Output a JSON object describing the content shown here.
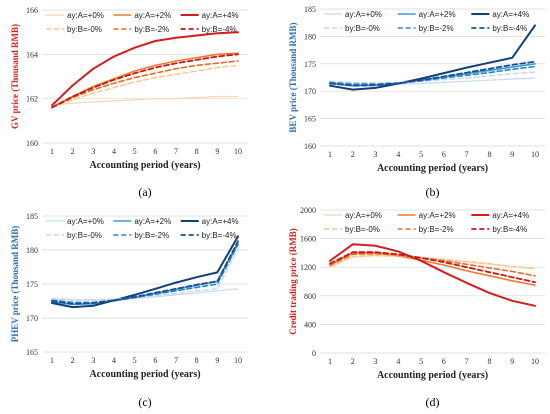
{
  "chart_data": [
    {
      "type": "line",
      "panel_label": "(a)",
      "xlabel": "Accounting period (years)",
      "ylabel": "GV price (Thousand RMB)",
      "ylabel_color": "#d42020",
      "ylim": [
        160,
        166
      ],
      "yticks": [
        160,
        162,
        164,
        166
      ],
      "x": [
        1,
        2,
        3,
        4,
        5,
        6,
        7,
        8,
        9,
        10
      ],
      "grid": true,
      "legend_position": "top",
      "series": [
        {
          "name": "ay:A=+0%",
          "color": "#fbd5b5",
          "dash": false,
          "width": 1.2,
          "values": [
            161.7,
            161.8,
            161.85,
            161.9,
            161.95,
            162.0,
            162.0,
            162.05,
            162.1,
            162.1
          ]
        },
        {
          "name": "ay:A=+2%",
          "color": "#f07c2a",
          "dash": false,
          "width": 1.6,
          "values": [
            161.6,
            162.1,
            162.55,
            162.9,
            163.25,
            163.5,
            163.7,
            163.85,
            164.0,
            164.05
          ]
        },
        {
          "name": "ay:A=+4%",
          "color": "#d21e1e",
          "dash": false,
          "width": 2.0,
          "values": [
            161.7,
            162.6,
            163.35,
            163.9,
            164.3,
            164.6,
            164.75,
            164.85,
            164.95,
            165.0
          ]
        },
        {
          "name": "by:B=-0%",
          "color": "#f7c68d",
          "dash": true,
          "width": 1.4,
          "values": [
            161.6,
            161.95,
            162.25,
            162.5,
            162.75,
            162.95,
            163.1,
            163.25,
            163.4,
            163.5
          ]
        },
        {
          "name": "by:B=-2%",
          "color": "#ea6a1c",
          "dash": true,
          "width": 1.6,
          "values": [
            161.6,
            162.05,
            162.4,
            162.7,
            162.95,
            163.15,
            163.35,
            163.5,
            163.6,
            163.7
          ]
        },
        {
          "name": "by:B=-4%",
          "color": "#c8161d",
          "dash": true,
          "width": 1.8,
          "values": [
            161.6,
            162.1,
            162.5,
            162.85,
            163.15,
            163.4,
            163.6,
            163.75,
            163.9,
            164.0
          ]
        }
      ]
    },
    {
      "type": "line",
      "panel_label": "(b)",
      "xlabel": "Accounting period (years)",
      "ylabel": "BEV price (Thousand RMB)",
      "ylabel_color": "#2e6db4",
      "ylim": [
        160,
        185
      ],
      "yticks": [
        160,
        165,
        170,
        175,
        180,
        185
      ],
      "x": [
        1,
        2,
        3,
        4,
        5,
        6,
        7,
        8,
        9,
        10
      ],
      "grid": true,
      "legend_position": "top",
      "series": [
        {
          "name": "ay:A=+0%",
          "color": "#c6d9f0",
          "dash": false,
          "width": 1.2,
          "values": [
            171.3,
            171.2,
            171.2,
            171.3,
            171.4,
            171.6,
            171.8,
            172.0,
            172.2,
            172.4
          ]
        },
        {
          "name": "ay:A=+2%",
          "color": "#3a9ad9",
          "dash": false,
          "width": 1.6,
          "values": [
            171.5,
            171.0,
            171.1,
            171.5,
            172.0,
            172.6,
            173.2,
            173.8,
            174.4,
            175.0
          ]
        },
        {
          "name": "ay:A=+4%",
          "color": "#123f7a",
          "dash": false,
          "width": 2.0,
          "values": [
            171.0,
            170.3,
            170.6,
            171.4,
            172.3,
            173.3,
            174.3,
            175.2,
            176.1,
            182.0
          ]
        },
        {
          "name": "by:B=-0%",
          "color": "#c6d9f0",
          "dash": true,
          "width": 1.4,
          "values": [
            171.8,
            171.6,
            171.5,
            171.6,
            171.8,
            172.1,
            172.4,
            172.8,
            173.2,
            173.5
          ]
        },
        {
          "name": "by:B=-2%",
          "color": "#2a86c8",
          "dash": true,
          "width": 1.6,
          "values": [
            171.6,
            171.3,
            171.3,
            171.5,
            171.9,
            172.4,
            172.9,
            173.4,
            174.0,
            174.5
          ]
        },
        {
          "name": "by:B=-4%",
          "color": "#1b4f8f",
          "dash": true,
          "width": 1.8,
          "values": [
            171.4,
            171.0,
            171.1,
            171.4,
            172.0,
            172.7,
            173.4,
            174.1,
            174.8,
            175.4
          ]
        }
      ]
    },
    {
      "type": "line",
      "panel_label": "(c)",
      "xlabel": "Accounting period (years)",
      "ylabel": "PHEV price (Thousand RMB)",
      "ylabel_color": "#2e6db4",
      "ylim": [
        165,
        185
      ],
      "yticks": [
        165,
        170,
        175,
        180,
        185
      ],
      "x": [
        1,
        2,
        3,
        4,
        5,
        6,
        7,
        8,
        9,
        10
      ],
      "grid": true,
      "legend_position": "top",
      "series": [
        {
          "name": "ay:A=+0%",
          "color": "#c6d9f0",
          "dash": false,
          "width": 1.2,
          "values": [
            172.8,
            172.6,
            172.6,
            172.7,
            172.9,
            173.1,
            173.4,
            173.7,
            174.0,
            174.3
          ]
        },
        {
          "name": "ay:A=+2%",
          "color": "#3a9ad9",
          "dash": false,
          "width": 1.6,
          "values": [
            172.4,
            172.0,
            172.1,
            172.5,
            173.0,
            173.6,
            174.2,
            174.8,
            175.4,
            181.0
          ]
        },
        {
          "name": "ay:A=+4%",
          "color": "#123f7a",
          "dash": false,
          "width": 2.0,
          "values": [
            172.2,
            171.6,
            171.8,
            172.6,
            173.4,
            174.3,
            175.2,
            176.0,
            176.7,
            182.0
          ]
        },
        {
          "name": "by:B=-0%",
          "color": "#c6d9f0",
          "dash": true,
          "width": 1.4,
          "values": [
            172.9,
            172.7,
            172.7,
            172.8,
            173.0,
            173.3,
            173.6,
            174.0,
            174.3,
            180.2
          ]
        },
        {
          "name": "by:B=-2%",
          "color": "#2a86c8",
          "dash": true,
          "width": 1.6,
          "values": [
            172.6,
            172.3,
            172.3,
            172.6,
            173.0,
            173.5,
            174.0,
            174.5,
            175.0,
            180.8
          ]
        },
        {
          "name": "by:B=-4%",
          "color": "#1b4f8f",
          "dash": true,
          "width": 1.8,
          "values": [
            172.5,
            172.1,
            172.2,
            172.6,
            173.1,
            173.7,
            174.3,
            174.9,
            175.4,
            181.3
          ]
        }
      ]
    },
    {
      "type": "line",
      "panel_label": "(d)",
      "xlabel": "Accounting period (years)",
      "ylabel": "Credit trading price (RMB)",
      "ylabel_color": "#d42020",
      "ylim": [
        0,
        2000
      ],
      "yticks": [
        0,
        400,
        800,
        1200,
        1600,
        2000
      ],
      "x": [
        1,
        2,
        3,
        4,
        5,
        6,
        7,
        8,
        9,
        10
      ],
      "grid": true,
      "legend_position": "top",
      "series": [
        {
          "name": "ay:A=+0%",
          "color": "#fbd5b5",
          "dash": false,
          "width": 1.2,
          "values": [
            1200,
            1340,
            1360,
            1350,
            1330,
            1300,
            1270,
            1240,
            1210,
            1180
          ]
        },
        {
          "name": "ay:A=+2%",
          "color": "#f07c2a",
          "dash": false,
          "width": 1.6,
          "values": [
            1230,
            1400,
            1400,
            1360,
            1300,
            1230,
            1150,
            1080,
            1010,
            950
          ]
        },
        {
          "name": "ay:A=+4%",
          "color": "#d21e1e",
          "dash": false,
          "width": 2.0,
          "values": [
            1290,
            1520,
            1500,
            1420,
            1290,
            1130,
            980,
            840,
            730,
            660
          ]
        },
        {
          "name": "by:B=-0%",
          "color": "#f7c68d",
          "dash": true,
          "width": 1.4,
          "values": [
            1210,
            1350,
            1370,
            1360,
            1340,
            1310,
            1280,
            1250,
            1210,
            1180
          ]
        },
        {
          "name": "by:B=-2%",
          "color": "#ea6a1c",
          "dash": true,
          "width": 1.6,
          "values": [
            1230,
            1380,
            1390,
            1370,
            1330,
            1290,
            1240,
            1190,
            1140,
            1080
          ]
        },
        {
          "name": "by:B=-4%",
          "color": "#c8161d",
          "dash": true,
          "width": 1.8,
          "values": [
            1250,
            1410,
            1410,
            1380,
            1330,
            1270,
            1200,
            1130,
            1060,
            990
          ]
        }
      ]
    }
  ]
}
